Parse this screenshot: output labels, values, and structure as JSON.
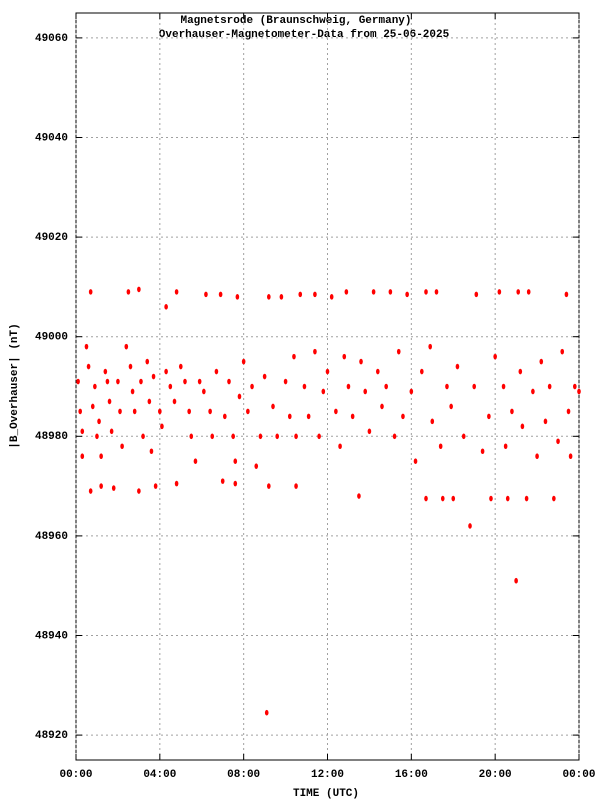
{
  "chart_data": {
    "type": "scatter",
    "title": "Magnetsrode (Braunschweig, Germany)",
    "subtitle": "Overhauser-Magnetometer-Data from 25-06-2025",
    "x_label": "TIME (UTC)",
    "y_label": "|B_Overhauser| (nT)",
    "color": "#ff0000",
    "grid": true,
    "xlim": [
      0,
      24
    ],
    "ylim": [
      48915,
      49065
    ],
    "xticks": [
      {
        "value": 0,
        "label": "00:00"
      },
      {
        "value": 4,
        "label": "04:00"
      },
      {
        "value": 8,
        "label": "08:00"
      },
      {
        "value": 12,
        "label": "12:00"
      },
      {
        "value": 16,
        "label": "16:00"
      },
      {
        "value": 20,
        "label": "20:00"
      },
      {
        "value": 24,
        "label": "00:00"
      }
    ],
    "yticks": [
      48920,
      48940,
      48960,
      48980,
      49000,
      49020,
      49040,
      49060
    ],
    "x": [
      0.1,
      0.2,
      0.3,
      0.3,
      0.5,
      0.6,
      0.7,
      0.7,
      0.8,
      0.9,
      1.0,
      1.1,
      1.2,
      1.2,
      1.4,
      1.5,
      1.6,
      1.7,
      1.8,
      2.0,
      2.1,
      2.2,
      2.4,
      2.5,
      2.6,
      2.7,
      2.8,
      3.0,
      3.0,
      3.1,
      3.2,
      3.4,
      3.5,
      3.6,
      3.7,
      3.8,
      4.0,
      4.1,
      4.3,
      4.3,
      4.5,
      4.7,
      4.8,
      4.8,
      5.0,
      5.2,
      5.4,
      5.5,
      5.7,
      5.9,
      6.1,
      6.2,
      6.4,
      6.5,
      6.7,
      6.9,
      7.0,
      7.1,
      7.3,
      7.5,
      7.6,
      7.6,
      7.7,
      7.8,
      8.0,
      8.2,
      8.4,
      8.6,
      8.8,
      9.0,
      9.1,
      9.2,
      9.2,
      9.4,
      9.6,
      9.8,
      10.0,
      10.2,
      10.4,
      10.5,
      10.5,
      10.7,
      10.9,
      11.1,
      11.4,
      11.4,
      11.6,
      11.8,
      12.0,
      12.2,
      12.4,
      12.6,
      12.8,
      12.9,
      13.0,
      13.2,
      13.5,
      13.6,
      13.8,
      14.0,
      14.2,
      14.4,
      14.6,
      14.8,
      15.0,
      15.2,
      15.4,
      15.6,
      15.8,
      16.0,
      16.2,
      16.5,
      16.7,
      16.7,
      16.9,
      17.0,
      17.2,
      17.4,
      17.5,
      17.7,
      17.9,
      18.0,
      18.2,
      18.5,
      18.8,
      19.0,
      19.1,
      19.4,
      19.7,
      19.8,
      20.0,
      20.2,
      20.4,
      20.5,
      20.6,
      20.8,
      21.0,
      21.1,
      21.2,
      21.3,
      21.5,
      21.6,
      21.8,
      22.0,
      22.2,
      22.4,
      22.6,
      22.8,
      23.0,
      23.2,
      23.4,
      23.5,
      23.6,
      23.8,
      24.0
    ],
    "values": [
      48991,
      48985,
      48976,
      48981,
      48998,
      48994,
      49009,
      48969,
      48986,
      48990,
      48980,
      48983,
      48976,
      48970,
      48993,
      48991,
      48987,
      48981,
      48969.6,
      48991,
      48985,
      48978,
      48998,
      49009,
      48994,
      48989,
      48985,
      49009.5,
      48969,
      48991,
      48980,
      48995,
      48987,
      48977,
      48992,
      48970,
      48985,
      48982,
      49006,
      48993,
      48990,
      48987,
      49009,
      48970.5,
      48994,
      48991,
      48985,
      48980,
      48975,
      48991,
      48989,
      49008.5,
      48985,
      48980,
      48993,
      49008.5,
      48971,
      48984,
      48991,
      48980,
      48975,
      48970.5,
      49008,
      48988,
      48995,
      48985,
      48990,
      48974,
      48980,
      48992,
      48924.5,
      49008,
      48970,
      48986,
      48980,
      49008,
      48991,
      48984,
      48996,
      48970,
      48980,
      49008.5,
      48990,
      48984,
      48997,
      49008.5,
      48980,
      48989,
      48993,
      49008,
      48985,
      48978,
      48996,
      49009,
      48990,
      48984,
      48968,
      48995,
      48989,
      48981,
      49009,
      48993,
      48986,
      48990,
      49009,
      48980,
      48997,
      48984,
      49008.5,
      48989,
      48975,
      48993,
      49009,
      48967.5,
      48998,
      48983,
      49009,
      48978,
      48967.5,
      48990,
      48986,
      48967.5,
      48994,
      48980,
      48962,
      48990,
      49008.5,
      48977,
      48984,
      48967.5,
      48996,
      49009,
      48990,
      48978,
      48967.5,
      48985,
      48951,
      49009,
      48993,
      48982,
      48967.5,
      49009,
      48989,
      48976,
      48995,
      48983,
      48990,
      48967.5,
      48979,
      48997,
      49008.5,
      48985,
      48976,
      48990,
      48989
    ]
  }
}
